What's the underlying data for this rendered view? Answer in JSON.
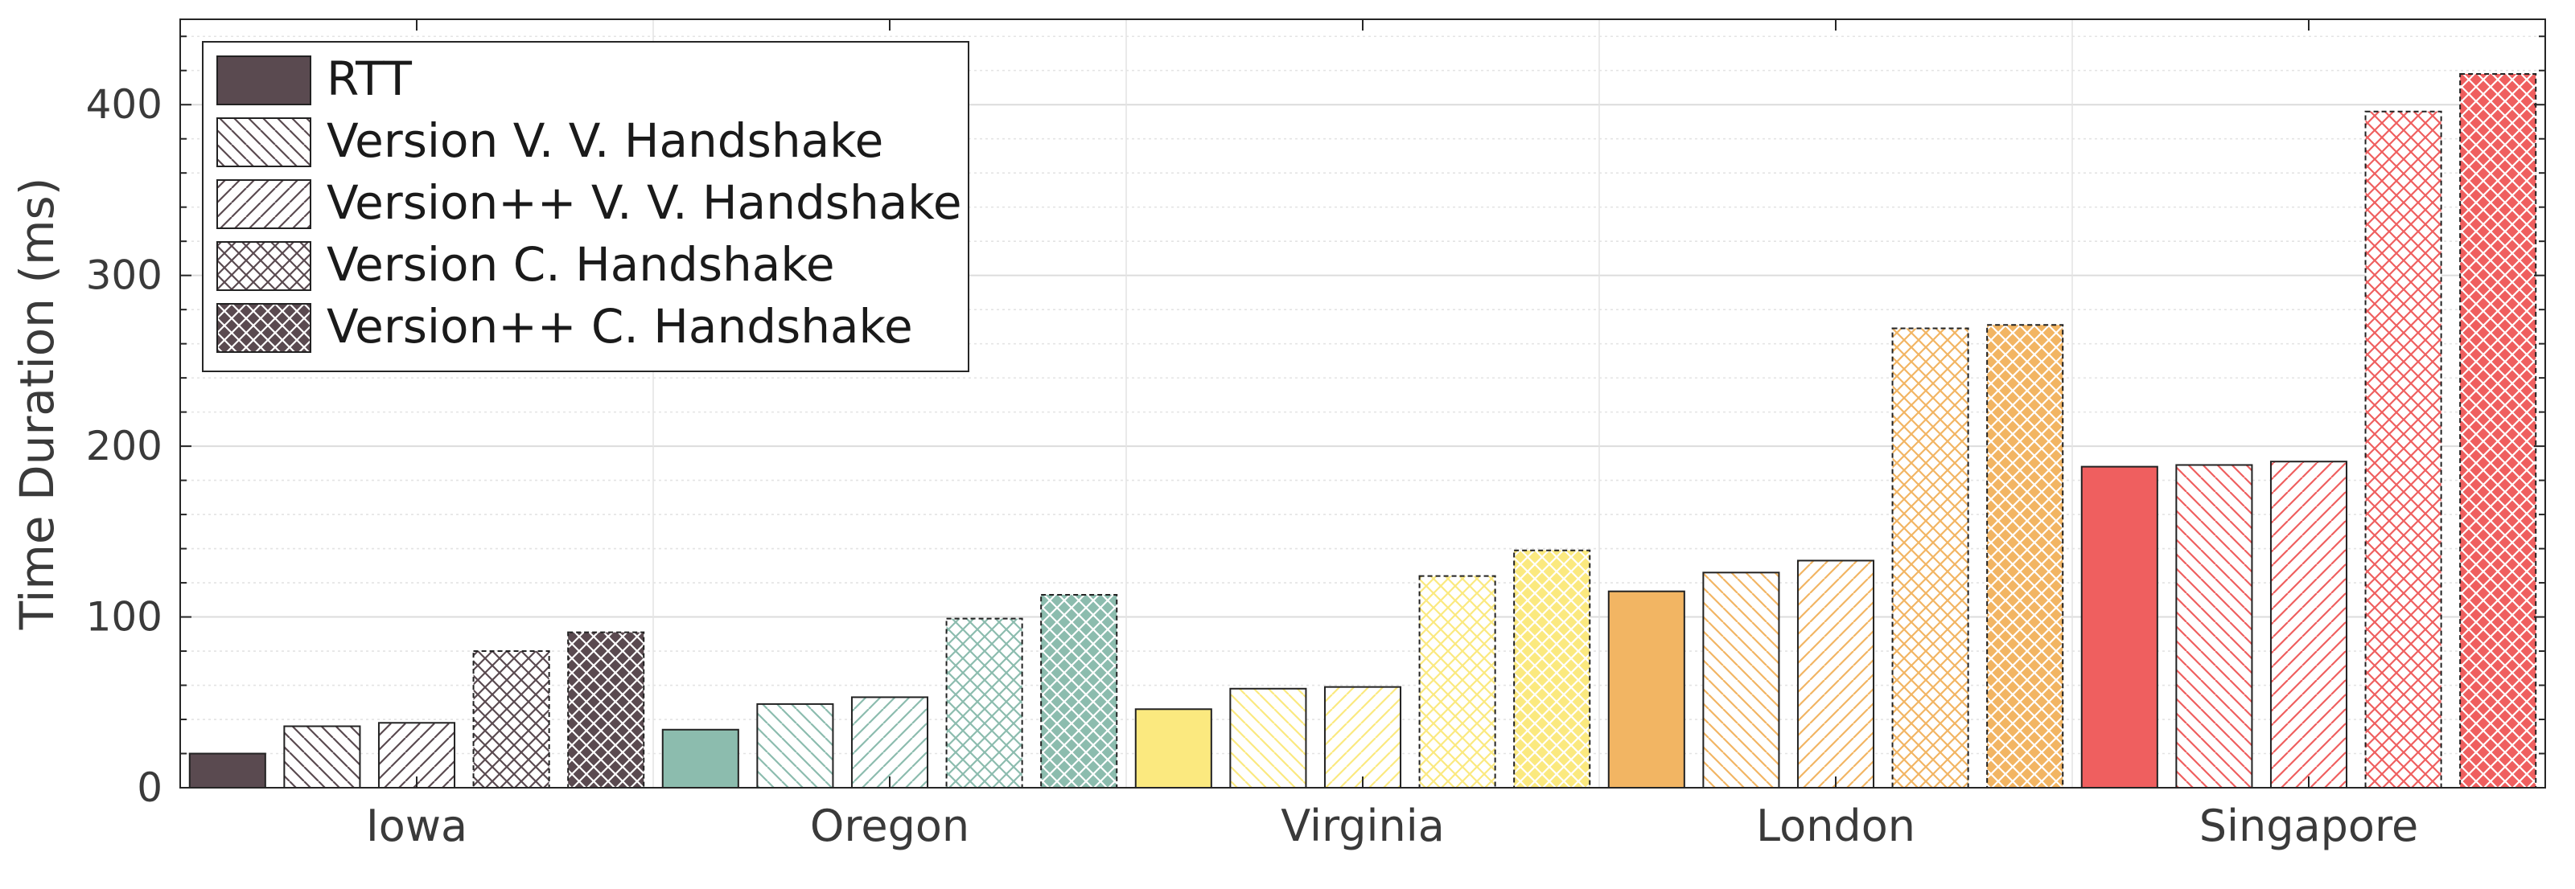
{
  "chart_data": {
    "type": "bar",
    "title": "",
    "xlabel": "",
    "ylabel": "Time Duration (ms)",
    "ylim": [
      0,
      450
    ],
    "yticks": [
      0,
      100,
      200,
      300,
      400
    ],
    "grid": true,
    "legend_position": "top-left",
    "categories": [
      "Iowa",
      "Oregon",
      "Virginia",
      "London",
      "Singapore"
    ],
    "category_colors": [
      "#5a4a50",
      "#8cbcae",
      "#fbe97f",
      "#f2b563",
      "#ef5f5f"
    ],
    "series": [
      {
        "name": "RTT",
        "pattern": "solid",
        "values": [
          20,
          34,
          46,
          115,
          188
        ]
      },
      {
        "name": "Version V. V. Handshake",
        "pattern": "back-diagonal",
        "values": [
          36,
          49,
          58,
          126,
          189
        ]
      },
      {
        "name": "Version++ V. V. Handshake",
        "pattern": "forward-diagonal",
        "values": [
          38,
          53,
          59,
          133,
          191
        ]
      },
      {
        "name": "Version C. Handshake",
        "pattern": "crosshatch",
        "values": [
          80,
          99,
          124,
          269,
          396
        ]
      },
      {
        "name": "Version++ C. Handshake",
        "pattern": "crosshatch-filled",
        "values": [
          91,
          113,
          139,
          271,
          418
        ]
      }
    ]
  }
}
